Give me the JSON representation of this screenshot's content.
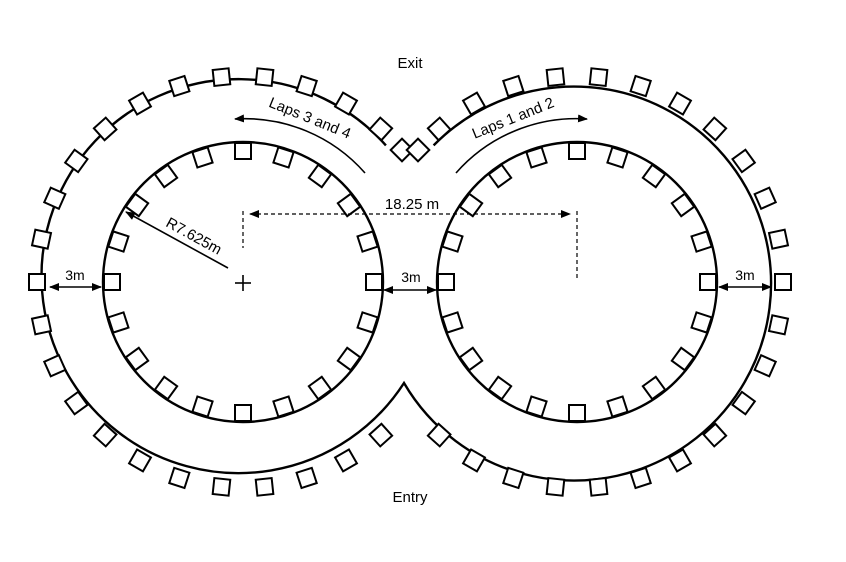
{
  "labels": {
    "exit": "Exit",
    "entry": "Entry",
    "laps_left": "Laps 3 and 4",
    "laps_right": "Laps 1 and 2",
    "center_distance": "18.25  m",
    "radius": "R7.625m",
    "width_left": "3m",
    "width_middle": "3m",
    "width_right": "3m"
  }
}
